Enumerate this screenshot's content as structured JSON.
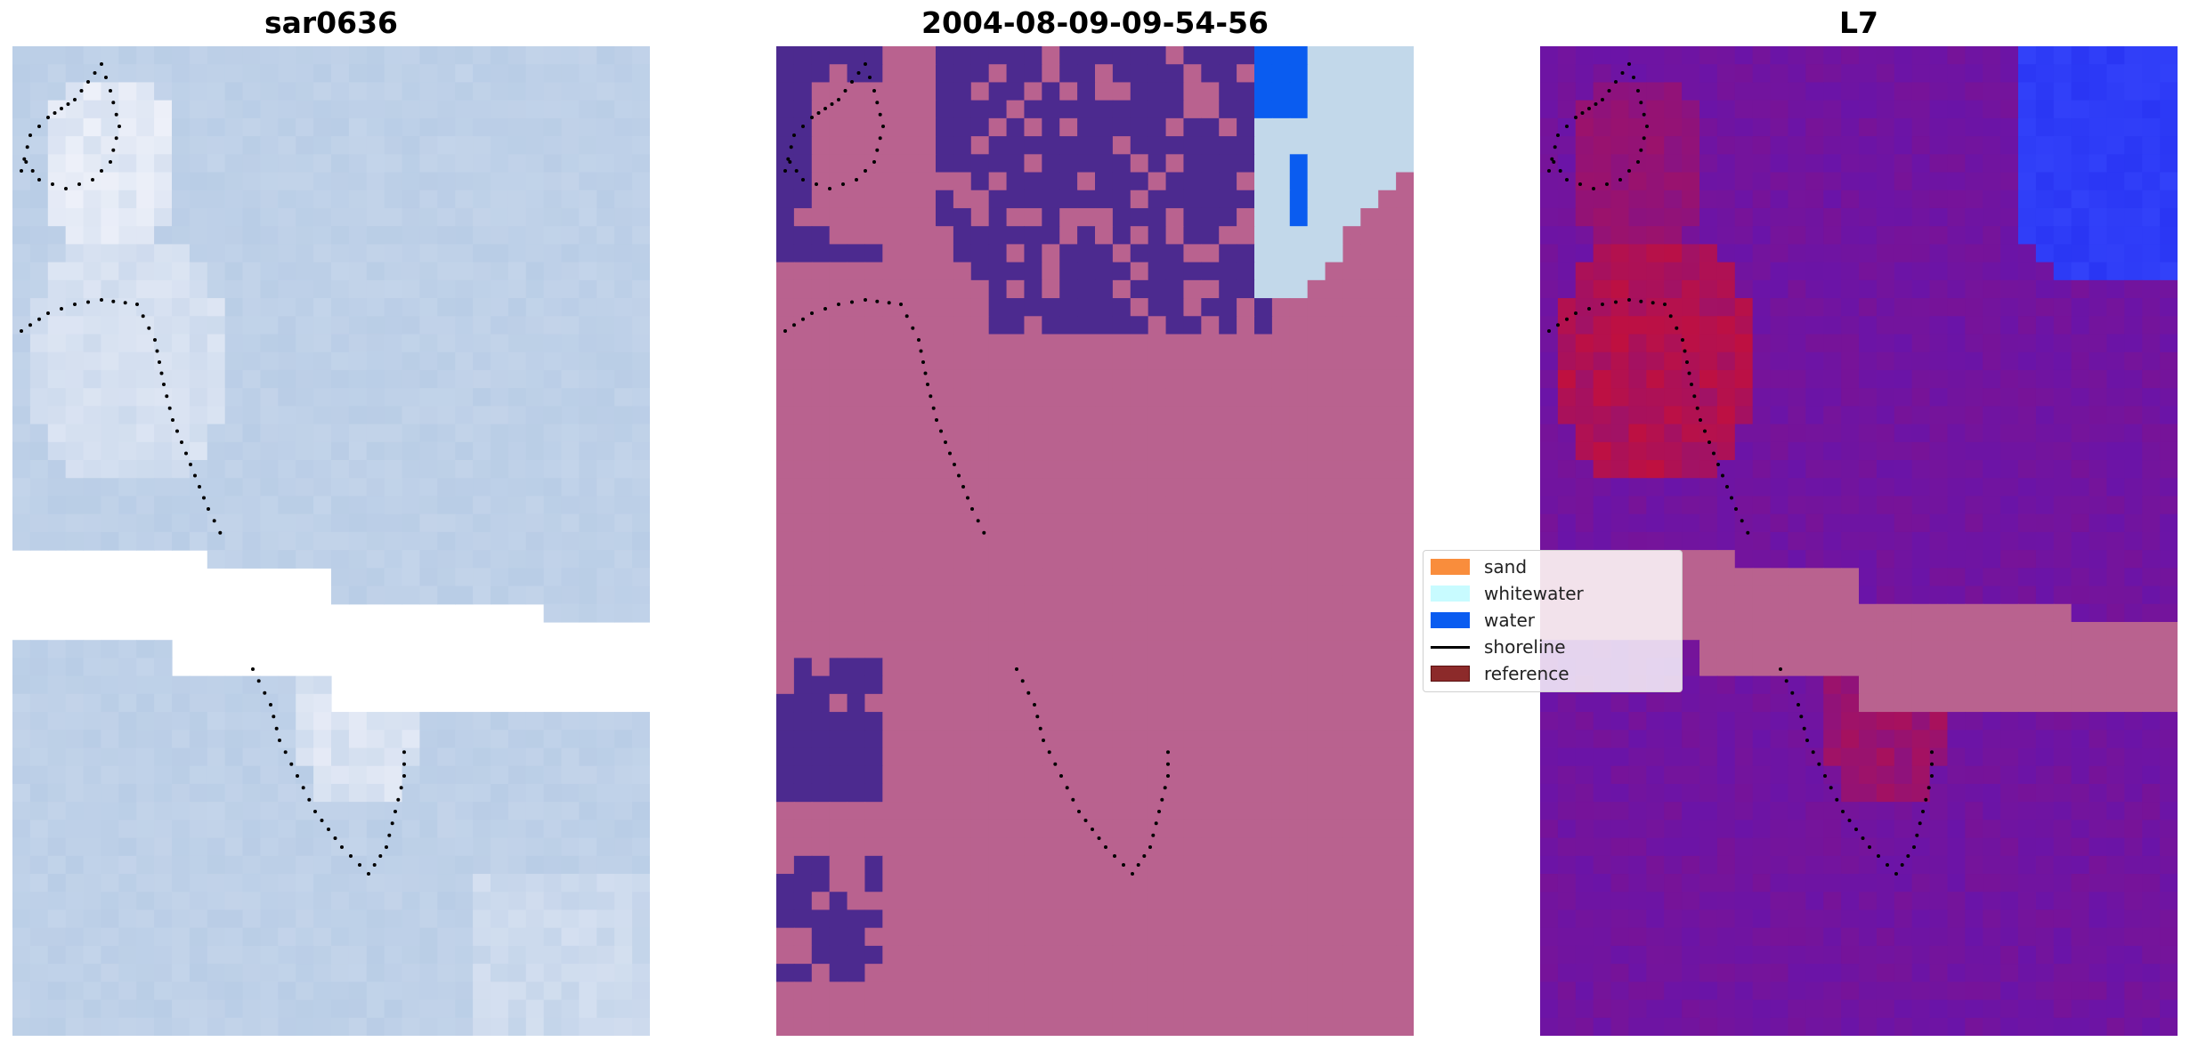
{
  "panels": [
    {
      "title": "sar0636"
    },
    {
      "title": "2004-08-09-09-54-56"
    },
    {
      "title": "L7"
    }
  ],
  "legend": {
    "items": [
      {
        "label": "sand",
        "color": "#f98d3c",
        "kind": "patch"
      },
      {
        "label": "whitewater",
        "color": "#c8fbff",
        "kind": "patch"
      },
      {
        "label": "water",
        "color": "#0a5cf0",
        "kind": "patch"
      },
      {
        "label": "shoreline",
        "color": "#000000",
        "kind": "line"
      },
      {
        "label": "reference",
        "color": "#8c2a2a",
        "kind": "patch"
      }
    ]
  },
  "colors": {
    "rgb_base": "#b9cde6",
    "rgb_bright": "#f0f2fa",
    "class_sand_overlay": "#b9628f",
    "class_water_overlay": "#4c2a8f",
    "class_water_pixel": "#0a5cf0",
    "class_whitewater_pixel": "#c2d8ea",
    "mndwi_low": "#6a14a8",
    "mndwi_high": "#c4103a",
    "mndwi_water": "#2a36f4"
  }
}
